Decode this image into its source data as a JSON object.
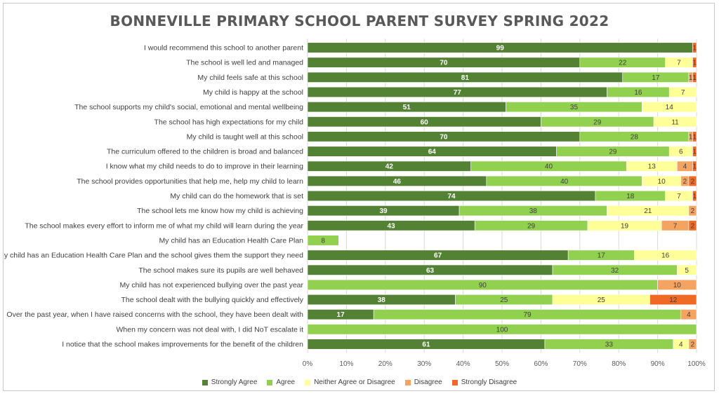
{
  "chart_data": {
    "type": "bar",
    "orientation": "horizontal",
    "stacked": true,
    "percent_stacked": true,
    "title": "BONNEVILLE PRIMARY SCHOOL PARENT SURVEY SPRING 2022",
    "xlim": [
      0,
      100
    ],
    "x_ticks": [
      "0%",
      "10%",
      "20%",
      "30%",
      "40%",
      "50%",
      "60%",
      "70%",
      "80%",
      "90%",
      "100%"
    ],
    "grid": true,
    "legend_position": "bottom",
    "categories": [
      "I would recommend this school to another parent",
      "The school is well led and managed",
      "My child feels safe at this school",
      "My child is happy at the school",
      "The school supports my child's social, emotional and mental wellbeing",
      "The school has high expectations for my child",
      "My child is taught well at this school",
      "The curriculum offered to the children is broad and balanced",
      "I know what my child needs to do to improve in their learning",
      "The school provides opportunities that help me, help my child to learn",
      "My child can do the homework that is set",
      "The school lets me know how my child is achieving",
      "The school makes every effort to inform me of what my child will learn during the year",
      "My child has an Education Health Care Plan",
      "My child has an Education Health Care Plan and the school gives them the support they need",
      "The school makes sure its pupils are well behaved",
      "My child has not experienced bullying over the past year",
      "The school dealt with the bullying quickly and effectively",
      "Over the past year, when I have raised concerns with the school, they have been dealt with",
      "When my concern was not deal with, I did NoT escalate it",
      "I notice that the school makes improvements for the benefit of the children"
    ],
    "series": [
      {
        "name": "Strongly Agree",
        "color": "#548235",
        "label_color": "#ffffff",
        "values": [
          99,
          70,
          81,
          77,
          51,
          60,
          70,
          64,
          42,
          46,
          74,
          39,
          43,
          0,
          67,
          63,
          0,
          38,
          17,
          0,
          61
        ]
      },
      {
        "name": "Agree",
        "color": "#92d050",
        "label_color": "#404040",
        "values": [
          0,
          22,
          17,
          16,
          35,
          29,
          28,
          29,
          40,
          40,
          18,
          38,
          29,
          8,
          17,
          32,
          90,
          25,
          79,
          100,
          33
        ]
      },
      {
        "name": "Neither Agree or Disagree",
        "color": "#ffff99",
        "label_color": "#404040",
        "values": [
          0,
          7,
          0,
          7,
          14,
          11,
          0,
          6,
          13,
          10,
          7,
          21,
          19,
          0,
          16,
          5,
          0,
          25,
          0,
          0,
          4
        ]
      },
      {
        "name": "Disagree",
        "color": "#f4a460",
        "label_color": "#404040",
        "values": [
          0,
          0,
          1,
          0,
          0,
          0,
          1,
          0,
          4,
          2,
          0,
          2,
          7,
          0,
          0,
          0,
          10,
          0,
          4,
          0,
          2
        ]
      },
      {
        "name": "Strongly Disagree",
        "color": "#f06a25",
        "label_color": "#404040",
        "values": [
          1,
          1,
          1,
          0,
          0,
          0,
          1,
          1,
          1,
          2,
          1,
          0,
          2,
          0,
          0,
          0,
          0,
          12,
          0,
          0,
          0
        ]
      }
    ]
  }
}
